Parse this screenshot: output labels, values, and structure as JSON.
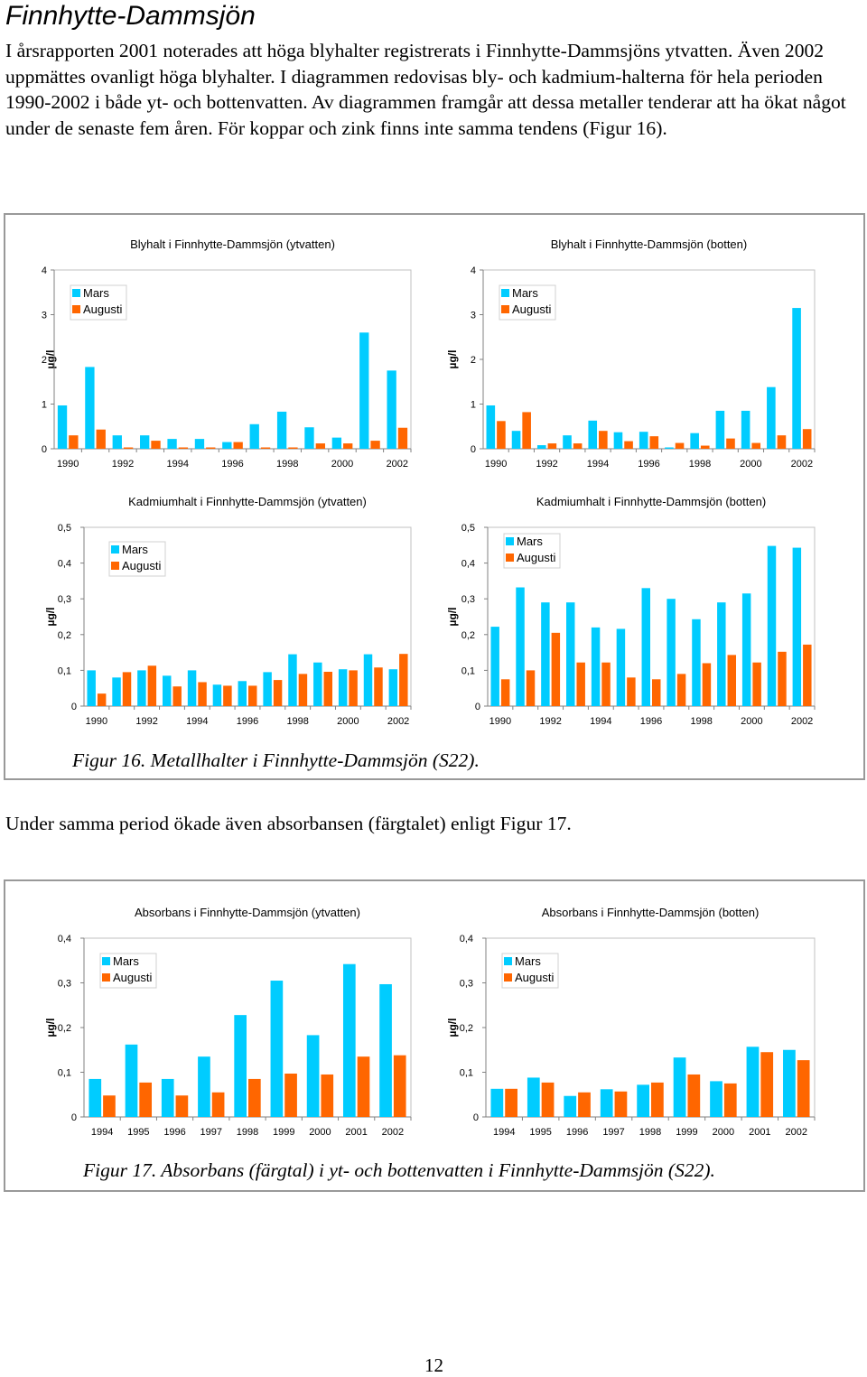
{
  "page": {
    "title": "Finnhytte-Dammsjön",
    "paragraph1": "I årsrapporten 2001 noterades att höga blyhalter registrerats i Finnhytte-Dammsjöns ytvatten. Även 2002 uppmättes ovanligt höga blyhalter. I diagrammen redovisas bly- och kadmium-halterna för hela perioden 1990-2002 i både yt- och bottenvatten. Av diagrammen framgår att dessa metaller tenderar att ha ökat något under de senaste fem åren. För koppar och zink finns inte samma tendens (Figur 16).",
    "figure16_caption": "Figur 16. Metallhalter i Finnhytte-Dammsjön (S22).",
    "paragraph2": "Under samma period ökade även absorbansen (färgtalet) enligt Figur 17.",
    "figure17_caption": "Figur 17. Absorbans (färgtal) i yt- och bottenvatten i Finnhytte-Dammsjön (S22).",
    "page_number": "12"
  },
  "colors": {
    "mars": "#00ccff",
    "augusti": "#ff6600",
    "grid": "#c0c0c0",
    "axis": "#808080"
  },
  "chart_data": [
    {
      "type": "bar",
      "title": "Blyhalt i Finnhytte-Dammsjön (ytvatten)",
      "ylabel": "µg/l",
      "ylim": [
        0,
        4
      ],
      "yticks": [
        "0",
        "1",
        "2",
        "3",
        "4"
      ],
      "categories": [
        "1990",
        "1991",
        "1992",
        "1993",
        "1994",
        "1995",
        "1996",
        "1997",
        "1998",
        "1999",
        "2000",
        "2001",
        "2002"
      ],
      "xtick_labels": [
        "1990",
        "",
        "1992",
        "",
        "1994",
        "",
        "1996",
        "",
        "1998",
        "",
        "2000",
        "",
        "2002"
      ],
      "legend": [
        "Mars",
        "Augusti"
      ],
      "series": [
        {
          "name": "Mars",
          "values": [
            0.97,
            1.83,
            0.3,
            0.3,
            0.22,
            0.22,
            0.15,
            0.55,
            0.83,
            0.48,
            0.25,
            2.6,
            1.75
          ]
        },
        {
          "name": "Augusti",
          "values": [
            0.3,
            0.43,
            0.03,
            0.18,
            0.03,
            0.03,
            0.15,
            0.03,
            0.03,
            0.12,
            0.12,
            0.18,
            0.47
          ]
        }
      ]
    },
    {
      "type": "bar",
      "title": "Blyhalt i Finnhytte-Dammsjön (botten)",
      "ylabel": "µg/l",
      "ylim": [
        0,
        4
      ],
      "yticks": [
        "0",
        "1",
        "2",
        "3",
        "4"
      ],
      "categories": [
        "1990",
        "1991",
        "1992",
        "1993",
        "1994",
        "1995",
        "1996",
        "1997",
        "1998",
        "1999",
        "2000",
        "2001",
        "2002"
      ],
      "xtick_labels": [
        "1990",
        "",
        "1992",
        "",
        "1994",
        "",
        "1996",
        "",
        "1998",
        "",
        "2000",
        "",
        "2002"
      ],
      "legend": [
        "Mars",
        "Augusti"
      ],
      "series": [
        {
          "name": "Mars",
          "values": [
            0.97,
            0.4,
            0.08,
            0.3,
            0.63,
            0.37,
            0.38,
            0.03,
            0.35,
            0.85,
            0.85,
            1.38,
            3.15
          ]
        },
        {
          "name": "Augusti",
          "values": [
            0.62,
            0.82,
            0.12,
            0.12,
            0.4,
            0.17,
            0.28,
            0.13,
            0.07,
            0.23,
            0.13,
            0.3,
            0.44
          ]
        }
      ]
    },
    {
      "type": "bar",
      "title": "Kadmiumhalt i Finnhytte-Dammsjön (ytvatten)",
      "ylabel": "µg/l",
      "ylim": [
        0,
        0.5
      ],
      "yticks": [
        "0",
        "0,1",
        "0,2",
        "0,3",
        "0,4",
        "0,5"
      ],
      "categories": [
        "1990",
        "1991",
        "1992",
        "1993",
        "1994",
        "1995",
        "1996",
        "1997",
        "1998",
        "1999",
        "2000",
        "2001",
        "2002"
      ],
      "xtick_labels": [
        "1990",
        "",
        "1992",
        "",
        "1994",
        "",
        "1996",
        "",
        "1998",
        "",
        "2000",
        "",
        "2002"
      ],
      "legend": [
        "Mars",
        "Augusti"
      ],
      "series": [
        {
          "name": "Mars",
          "values": [
            0.1,
            0.08,
            0.1,
            0.085,
            0.1,
            0.06,
            0.07,
            0.095,
            0.145,
            0.122,
            0.103,
            0.145,
            0.103
          ]
        },
        {
          "name": "Augusti",
          "values": [
            0.035,
            0.095,
            0.113,
            0.055,
            0.067,
            0.057,
            0.057,
            0.073,
            0.09,
            0.096,
            0.1,
            0.108,
            0.146
          ]
        }
      ]
    },
    {
      "type": "bar",
      "title": "Kadmiumhalt i Finnhytte-Dammsjön (botten)",
      "ylabel": "µg/l",
      "ylim": [
        0,
        0.5
      ],
      "yticks": [
        "0",
        "0,1",
        "0,2",
        "0,3",
        "0,4",
        "0,5"
      ],
      "categories": [
        "1990",
        "1991",
        "1992",
        "1993",
        "1994",
        "1995",
        "1996",
        "1997",
        "1998",
        "1999",
        "2000",
        "2001",
        "2002"
      ],
      "xtick_labels": [
        "1990",
        "",
        "1992",
        "",
        "1994",
        "",
        "1996",
        "",
        "1998",
        "",
        "2000",
        "",
        "2002"
      ],
      "legend": [
        "Mars",
        "Augusti"
      ],
      "series": [
        {
          "name": "Mars",
          "values": [
            0.222,
            0.332,
            0.29,
            0.29,
            0.22,
            0.216,
            0.33,
            0.3,
            0.243,
            0.29,
            0.315,
            0.448,
            0.443
          ]
        },
        {
          "name": "Augusti",
          "values": [
            0.075,
            0.1,
            0.205,
            0.122,
            0.122,
            0.08,
            0.075,
            0.09,
            0.12,
            0.143,
            0.122,
            0.152,
            0.172
          ]
        }
      ]
    },
    {
      "type": "bar",
      "title": "Absorbans i Finnhytte-Dammsjön (ytvatten)",
      "ylabel": "µg/l",
      "ylim": [
        0,
        0.4
      ],
      "yticks": [
        "0",
        "0,1",
        "0,2",
        "0,3",
        "0,4"
      ],
      "categories": [
        "1994",
        "1995",
        "1996",
        "1997",
        "1998",
        "1999",
        "2000",
        "2001",
        "2002"
      ],
      "xtick_labels": [
        "1994",
        "1995",
        "1996",
        "1997",
        "1998",
        "1999",
        "2000",
        "2001",
        "2002"
      ],
      "legend": [
        "Mars",
        "Augusti"
      ],
      "series": [
        {
          "name": "Mars",
          "values": [
            0.085,
            0.162,
            0.085,
            0.135,
            0.228,
            0.305,
            0.183,
            0.342,
            0.297
          ]
        },
        {
          "name": "Augusti",
          "values": [
            0.048,
            0.077,
            0.048,
            0.055,
            0.085,
            0.097,
            0.095,
            0.135,
            0.138
          ]
        }
      ]
    },
    {
      "type": "bar",
      "title": "Absorbans i Finnhytte-Dammsjön (botten)",
      "ylabel": "µg/l",
      "ylim": [
        0,
        0.4
      ],
      "yticks": [
        "0",
        "0,1",
        "0,2",
        "0,3",
        "0,4"
      ],
      "categories": [
        "1994",
        "1995",
        "1996",
        "1997",
        "1998",
        "1999",
        "2000",
        "2001",
        "2002"
      ],
      "xtick_labels": [
        "1994",
        "1995",
        "1996",
        "1997",
        "1998",
        "1999",
        "2000",
        "2001",
        "2002"
      ],
      "legend": [
        "Mars",
        "Augusti"
      ],
      "series": [
        {
          "name": "Mars",
          "values": [
            0.063,
            0.088,
            0.047,
            0.062,
            0.072,
            0.133,
            0.08,
            0.157,
            0.15
          ]
        },
        {
          "name": "Augusti",
          "values": [
            0.063,
            0.077,
            0.055,
            0.057,
            0.077,
            0.095,
            0.075,
            0.145,
            0.127
          ]
        }
      ]
    }
  ]
}
